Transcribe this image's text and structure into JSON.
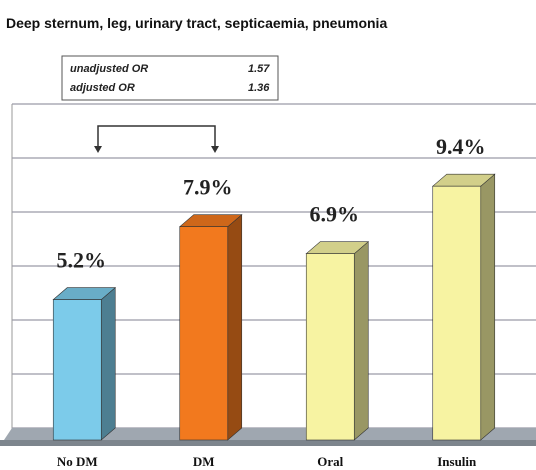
{
  "chart_data": {
    "type": "bar3d",
    "title": "Deep sternum, leg, urinary tract, septicaemia, pneumonia",
    "annotations": [
      {
        "label": "unadjusted OR",
        "value": "1.57"
      },
      {
        "label": "adjusted OR",
        "value": "1.36"
      }
    ],
    "categories": [
      "No DM",
      "DM",
      "Oral",
      "Insulin"
    ],
    "values": [
      5.2,
      7.9,
      6.9,
      9.4
    ],
    "value_labels": [
      "5.2%",
      "7.9%",
      "6.9%",
      "9.4%"
    ],
    "colors": [
      "#7ccbea",
      "#f2791e",
      "#f7f3a2",
      "#f7f3a2"
    ],
    "ylim": [
      0,
      12
    ],
    "yticks": [
      0,
      2,
      4,
      6,
      8,
      10,
      12
    ],
    "grid": true
  }
}
